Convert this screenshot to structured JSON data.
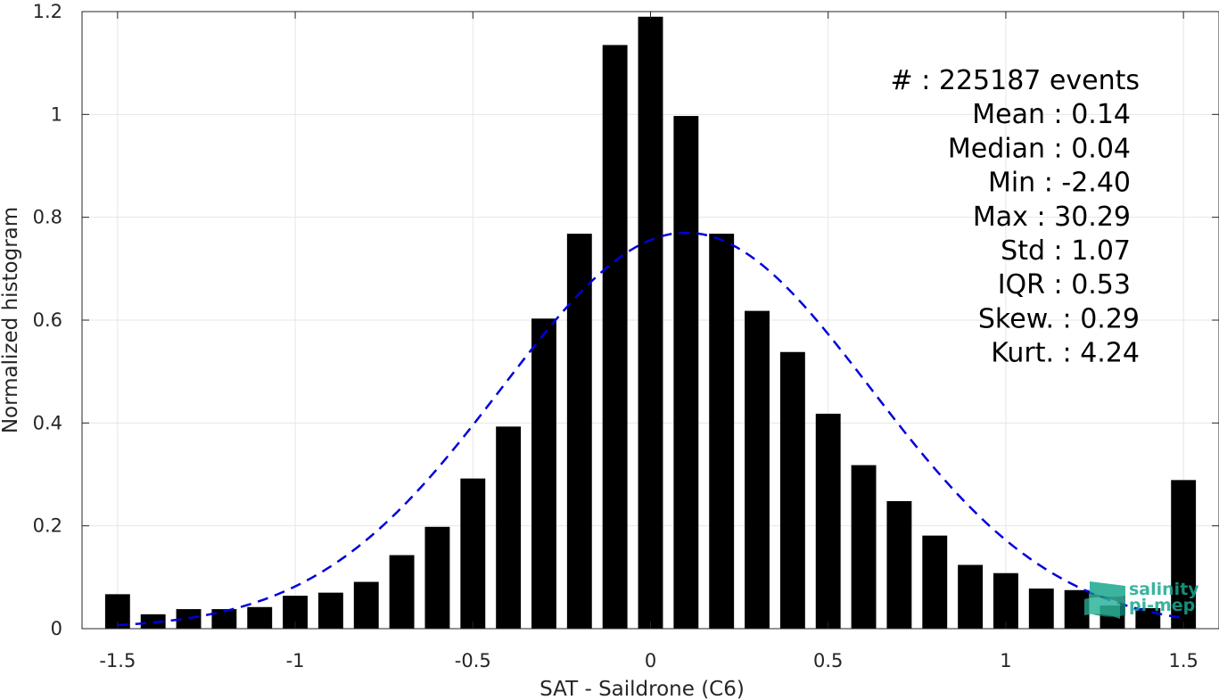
{
  "chart_data": {
    "type": "bar",
    "xlabel": "SAT - Saildrone (C6)",
    "ylabel": "Normalized histogram",
    "xlim": [
      -1.6,
      1.6
    ],
    "ylim": [
      0,
      1.2
    ],
    "xticks": [
      "-1.5",
      "-1",
      "-0.5",
      "0",
      "0.5",
      "1",
      "1.5"
    ],
    "xtick_values": [
      -1.5,
      -1,
      -0.5,
      0,
      0.5,
      1,
      1.5
    ],
    "yticks": [
      "0",
      "0.2",
      "0.4",
      "0.6",
      "0.8",
      "1",
      "1.2"
    ],
    "ytick_values": [
      0,
      0.2,
      0.4,
      0.6,
      0.8,
      1.0,
      1.2
    ],
    "grid": true,
    "bar_width": 0.07,
    "bar_color": "#000000",
    "bars": {
      "x": [
        -1.5,
        -1.4,
        -1.3,
        -1.2,
        -1.1,
        -1.0,
        -0.9,
        -0.8,
        -0.7,
        -0.6,
        -0.5,
        -0.4,
        -0.3,
        -0.2,
        -0.1,
        0.0,
        0.1,
        0.2,
        0.3,
        0.4,
        0.5,
        0.6,
        0.7,
        0.8,
        0.9,
        1.0,
        1.1,
        1.2,
        1.3,
        1.4,
        1.5
      ],
      "values": [
        0.067,
        0.028,
        0.038,
        0.038,
        0.042,
        0.064,
        0.07,
        0.091,
        0.143,
        0.198,
        0.292,
        0.393,
        0.603,
        0.768,
        1.135,
        1.19,
        0.997,
        0.768,
        0.618,
        0.538,
        0.418,
        0.318,
        0.248,
        0.181,
        0.124,
        0.108,
        0.078,
        0.075,
        0.045,
        0.04,
        0.289
      ]
    },
    "fit_curve": {
      "type": "gaussian",
      "mean": 0.1,
      "std": 0.52,
      "peak": 0.77,
      "x_range": [
        -1.5,
        1.5
      ],
      "color": "#0000dd",
      "style": "dashed"
    },
    "annotation": {
      "lines": [
        "#  : 225187 events",
        "Mean : 0.14",
        "Median : 0.04",
        "Min : -2.40",
        "Max : 30.29",
        "Std : 1.07",
        "IQR : 0.53",
        "Skew. : 0.29",
        "Kurt. : 4.24"
      ],
      "placement": "top-right"
    }
  },
  "logo": {
    "line1": "salinity",
    "line2": "pi-mep",
    "color": "#1aa88f"
  }
}
